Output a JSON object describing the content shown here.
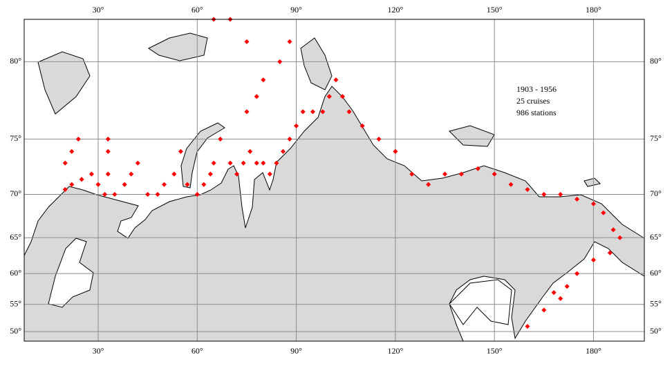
{
  "map": {
    "annotation": [
      "1903 - 1956",
      "25 cruises",
      "986 stations"
    ],
    "xlim": [
      7.6,
      195.4
    ],
    "ylim": [
      48.1,
      82
    ],
    "lon_ticks": [
      {
        "value": 30,
        "label": "30°"
      },
      {
        "value": 60,
        "label": "60°"
      },
      {
        "value": 90,
        "label": "90°"
      },
      {
        "value": 120,
        "label": "120°"
      },
      {
        "value": 150,
        "label": "150°"
      },
      {
        "value": 180,
        "label": "180°"
      }
    ],
    "lat_ticks": [
      {
        "value": 80,
        "label": "80°"
      },
      {
        "value": 75,
        "label": "75°"
      },
      {
        "value": 70,
        "label": "70°"
      },
      {
        "value": 65,
        "label": "65°"
      },
      {
        "value": 60,
        "label": "60°"
      },
      {
        "value": 55,
        "label": "55°"
      },
      {
        "value": 50,
        "label": "50°"
      }
    ],
    "station_color": "#ff0000",
    "stations": {
      "lon": [
        20,
        22,
        25,
        20,
        22,
        24,
        28,
        30,
        32,
        33,
        33,
        33,
        35,
        38,
        40,
        42,
        45,
        48,
        50,
        53,
        55,
        57,
        60,
        62,
        64,
        65,
        67,
        70,
        72,
        74,
        76,
        78,
        80,
        82,
        84,
        86,
        88,
        90,
        92,
        95,
        98,
        100,
        102,
        104,
        106,
        75,
        78,
        80,
        85,
        88,
        65,
        70,
        75,
        110,
        115,
        120,
        125,
        130,
        135,
        140,
        145,
        150,
        155,
        160,
        165,
        170,
        175,
        180,
        183,
        186,
        188,
        185,
        180,
        175,
        172,
        170,
        165,
        160,
        168
      ],
      "lat": [
        70.5,
        71,
        71.5,
        73,
        74,
        75,
        72,
        71,
        70,
        72,
        74,
        75,
        70,
        71,
        72,
        73,
        70,
        70,
        71,
        72,
        74,
        71,
        70,
        71,
        72,
        73,
        75,
        73,
        72,
        73,
        74,
        73,
        73,
        72,
        73,
        74,
        75,
        76,
        77,
        77,
        77,
        78,
        79,
        78,
        77,
        77,
        78,
        79,
        80,
        81,
        82,
        82,
        81,
        76,
        75,
        74,
        72,
        71,
        72,
        72,
        72.5,
        72,
        71,
        70.5,
        70,
        70,
        69.5,
        69,
        68,
        66,
        65,
        63,
        62,
        60,
        58,
        56,
        54,
        51,
        57
      ]
    }
  }
}
